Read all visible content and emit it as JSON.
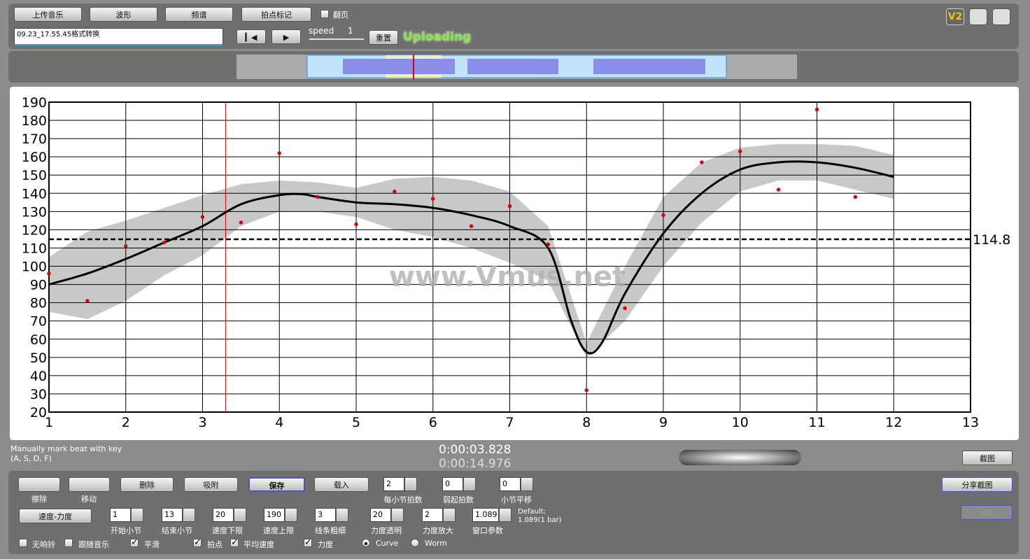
{
  "toolbar": {
    "buttons": [
      "上传音乐",
      "波形",
      "频谱",
      "拍点标记"
    ],
    "page_toggle": "翻页",
    "file_name": "09.23_17.55.45格式转换",
    "speed_label": "speed",
    "speed_value": "1",
    "reset": "重置",
    "status": "Uploading",
    "version": "V2"
  },
  "hint": [
    "Manually mark beat with key",
    "(A, S, D, F)"
  ],
  "time": {
    "current": "0:00:03.828",
    "total": "0:00:14.976"
  },
  "screenshot": "截图",
  "controls": {
    "tools": [
      "擦除",
      "移动"
    ],
    "buttons": [
      "删除",
      "吸附",
      "保存",
      "载入"
    ],
    "row1_fields": [
      {
        "value": "2",
        "label": "每小节拍数"
      },
      {
        "value": "0",
        "label": "弱起拍数"
      },
      {
        "value": "0",
        "label": "小节平移"
      }
    ],
    "share": "分享截图",
    "mode": "速度-力度",
    "row2_fields": [
      {
        "value": "1",
        "label": "开始小节"
      },
      {
        "value": "13",
        "label": "结束小节"
      },
      {
        "value": "20",
        "label": "速度下限"
      },
      {
        "value": "190",
        "label": "速度上限"
      },
      {
        "value": "3",
        "label": "线条粗细"
      },
      {
        "value": "20",
        "label": "力度透明"
      },
      {
        "value": "2",
        "label": "力度放大"
      },
      {
        "value": "1.089",
        "label": "窗口参数"
      }
    ],
    "default_note": [
      "Default:",
      "1.089(1 bar)"
    ],
    "disabled_button": "IOI",
    "checks": [
      {
        "label": "无响铃",
        "checked": false
      },
      {
        "label": "跟随音乐",
        "checked": false
      },
      {
        "label": "平滑",
        "checked": true
      },
      {
        "label": "拍点",
        "checked": true
      },
      {
        "label": "平均速度",
        "checked": true
      },
      {
        "label": "力度",
        "checked": true
      }
    ],
    "radios": [
      {
        "label": "Curve",
        "checked": true
      },
      {
        "label": "Worm",
        "checked": false
      }
    ]
  },
  "chart_data": {
    "type": "scatter",
    "watermark": "www.Vmus.net",
    "color": "#dd0000",
    "grid": true,
    "xlim": [
      1,
      13
    ],
    "xticks": [
      1,
      2,
      3,
      4,
      5,
      6,
      7,
      8,
      9,
      10,
      11,
      12,
      13
    ],
    "ylim": [
      20,
      190
    ],
    "yticks": [
      20,
      30,
      40,
      50,
      60,
      70,
      80,
      90,
      100,
      110,
      120,
      130,
      140,
      150,
      160,
      170,
      180,
      190
    ],
    "x": [
      1,
      1.5,
      2,
      2.5,
      3,
      3.5,
      4,
      4.5,
      5,
      5.5,
      6,
      6.5,
      7,
      7.5,
      8,
      8.5,
      9,
      9.5,
      10,
      10.5,
      11,
      11.5
    ],
    "values": [
      96,
      81,
      111,
      113,
      127,
      124,
      162,
      138,
      123,
      141,
      137,
      122,
      133,
      112,
      32,
      77,
      128,
      157,
      163,
      142,
      186,
      138
    ],
    "curve": {
      "color": "#000000",
      "x": [
        1,
        1.5,
        2,
        2.5,
        3,
        3.5,
        4,
        4.3,
        4.5,
        5,
        5.5,
        6,
        6.5,
        7,
        7.5,
        7.8,
        8,
        8.2,
        8.5,
        9,
        9.5,
        10,
        10.5,
        11,
        11.5,
        12
      ],
      "values": [
        90,
        96,
        104,
        113,
        122,
        134,
        139,
        139.5,
        138,
        135,
        134,
        132,
        128,
        122,
        110,
        70,
        53,
        58,
        85,
        118,
        140,
        153,
        157,
        157,
        154,
        149
      ]
    },
    "band": {
      "color": "#c8c8c8",
      "x": [
        1,
        1.5,
        2,
        2.5,
        3,
        3.5,
        4,
        4.5,
        5,
        5.5,
        6,
        6.5,
        7,
        7.5,
        8,
        8.5,
        9,
        9.5,
        10,
        10.5,
        11,
        11.5,
        12
      ],
      "upper": [
        105,
        119,
        125,
        132,
        139,
        145,
        147,
        146,
        143,
        148,
        149,
        147,
        141,
        122,
        58,
        100,
        138,
        157,
        165,
        167,
        167,
        166,
        161
      ],
      "lower": [
        75,
        71,
        81,
        95,
        106,
        122,
        130,
        130,
        127,
        120,
        116,
        110,
        102,
        92,
        50,
        70,
        100,
        124,
        141,
        147,
        147,
        142,
        137
      ]
    },
    "mean_line": 114.8,
    "cursor_x": 3.3
  }
}
